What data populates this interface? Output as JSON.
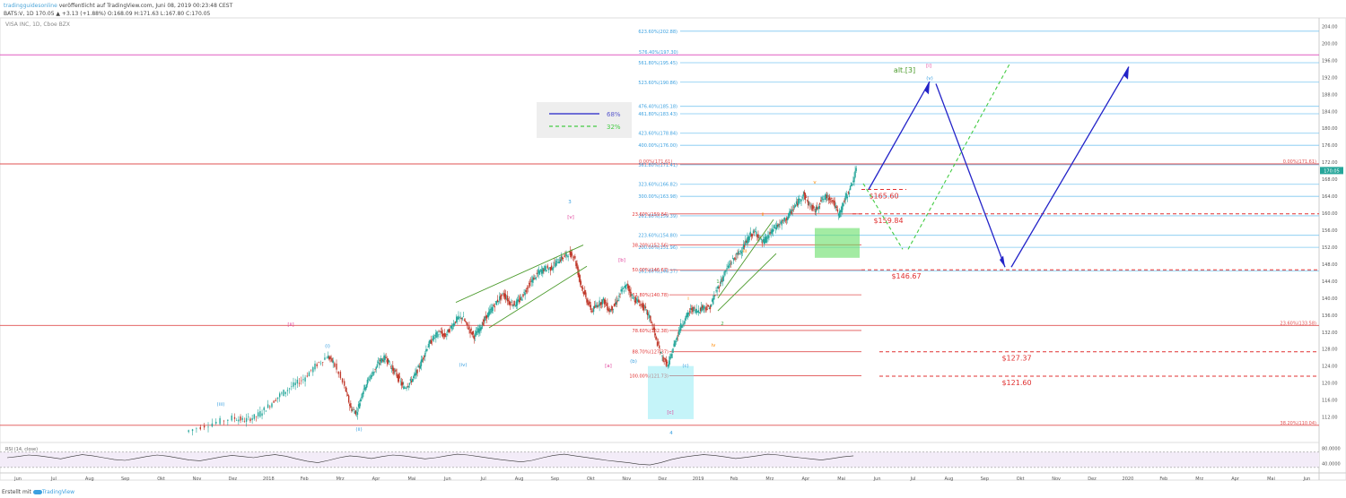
{
  "header": {
    "brand": "tradingguidesonline",
    "published": " veröffentlicht auf TradingView.com, Juni 08, 2019 00:23:48 CEST",
    "quote": "BATS:V, 1D 170.05 ▲ +3.13 (+1.88%) O:168.09 H:171.63 L:167.80 C:170.05"
  },
  "symbol_label": "VISA INC, 1D, Cboe BZX",
  "footer": {
    "prefix": "Erstellt mit",
    "brand": "TradingView"
  },
  "legend": [
    {
      "label": "68%",
      "color": "#2323c8",
      "style": "solid"
    },
    {
      "label": "32%",
      "color": "#44cc44",
      "style": "dashed"
    }
  ],
  "last_price_tag": "170.05",
  "rsi": {
    "label": "RSI (14, close)",
    "ticks": [
      "80.0000",
      "40.0000"
    ]
  },
  "chart_data": {
    "type": "candlestick",
    "symbol": "BATS:V",
    "timeframe": "1D",
    "price_axis": {
      "min": 106,
      "max": 206,
      "ticks": [
        112,
        116,
        120,
        124,
        128,
        132,
        136,
        140,
        144,
        148,
        152,
        156,
        160,
        164,
        168,
        172,
        176,
        180,
        184,
        188,
        192,
        196,
        200,
        204
      ]
    },
    "time_axis": [
      "Jun",
      "Jul",
      "Aug",
      "Sep",
      "Okt",
      "Nov",
      "Dez",
      "2018",
      "Feb",
      "Mrz",
      "Apr",
      "Mai",
      "Jun",
      "Jul",
      "Aug",
      "Sep",
      "Okt",
      "Nov",
      "Dez",
      "2019",
      "Feb",
      "Mrz",
      "Apr",
      "Mai",
      "Jun",
      "Jul",
      "Aug",
      "Sep",
      "Okt",
      "Nov",
      "Dez",
      "2020",
      "Feb",
      "Mrz",
      "Apr",
      "Mai",
      "Jun"
    ],
    "price_path": [
      [
        0,
        108.5
      ],
      [
        4,
        110.3
      ],
      [
        8,
        111.8
      ],
      [
        10,
        111.2
      ],
      [
        12,
        112.2
      ],
      [
        14,
        114.5
      ],
      [
        16,
        117.2
      ],
      [
        18,
        119.2
      ],
      [
        20,
        121.0
      ],
      [
        22,
        124.0
      ],
      [
        24,
        126.3
      ],
      [
        25,
        125.0
      ],
      [
        27,
        119.0
      ],
      [
        28,
        114.0
      ],
      [
        29,
        113.0
      ],
      [
        30,
        118.0
      ],
      [
        31,
        120.8
      ],
      [
        32,
        123.0
      ],
      [
        33,
        125.3
      ],
      [
        34,
        126.0
      ],
      [
        35,
        123.5
      ],
      [
        36,
        121.5
      ],
      [
        37,
        118.8
      ],
      [
        38,
        120.0
      ],
      [
        39,
        122.0
      ],
      [
        40,
        125.0
      ],
      [
        41,
        128.5
      ],
      [
        42,
        130.5
      ],
      [
        43,
        132.0
      ],
      [
        44,
        131.0
      ],
      [
        45,
        133.0
      ],
      [
        46,
        135.0
      ],
      [
        47,
        135.5
      ],
      [
        48,
        133.0
      ],
      [
        49,
        131.0
      ],
      [
        50,
        133.0
      ],
      [
        51,
        135.5
      ],
      [
        52,
        137.5
      ],
      [
        53,
        139.5
      ],
      [
        54,
        141.0
      ],
      [
        55,
        139.0
      ],
      [
        56,
        138.5
      ],
      [
        57,
        140.0
      ],
      [
        58,
        142.5
      ],
      [
        59,
        144.5
      ],
      [
        60,
        146.0
      ],
      [
        61,
        147.0
      ],
      [
        62,
        147.0
      ],
      [
        63,
        148.5
      ],
      [
        64,
        149.5
      ],
      [
        65,
        150.5
      ],
      [
        66,
        150.0
      ],
      [
        67,
        144.0
      ],
      [
        68,
        140.0
      ],
      [
        69,
        137.0
      ],
      [
        70,
        138.5
      ],
      [
        71,
        139.5
      ],
      [
        72,
        137.0
      ],
      [
        73,
        138.5
      ],
      [
        74,
        141.5
      ],
      [
        75,
        143.0
      ],
      [
        76,
        140.0
      ],
      [
        77,
        139.0
      ],
      [
        78,
        137.5
      ],
      [
        79,
        135.0
      ],
      [
        80,
        130.0
      ],
      [
        81,
        126.0
      ],
      [
        82,
        124.0
      ],
      [
        83,
        129.0
      ],
      [
        84,
        133.0
      ],
      [
        85,
        135.5
      ],
      [
        86,
        137.5
      ],
      [
        87,
        137.0
      ],
      [
        88,
        138.0
      ],
      [
        89,
        137.5
      ],
      [
        90,
        141.0
      ],
      [
        91,
        144.0
      ],
      [
        92,
        147.0
      ],
      [
        93,
        149.0
      ],
      [
        94,
        150.5
      ],
      [
        95,
        152.5
      ],
      [
        96,
        155.0
      ],
      [
        97,
        155.5
      ],
      [
        98,
        153.0
      ],
      [
        99,
        154.5
      ],
      [
        100,
        156.5
      ],
      [
        101,
        157.5
      ],
      [
        102,
        158.5
      ],
      [
        103,
        160.5
      ],
      [
        104,
        162.5
      ],
      [
        105,
        164.5
      ],
      [
        106,
        162.0
      ],
      [
        107,
        160.5
      ],
      [
        108,
        163.0
      ],
      [
        109,
        164.0
      ],
      [
        110,
        163.0
      ],
      [
        111,
        159.5
      ],
      [
        112,
        163.0
      ],
      [
        113,
        166.0
      ],
      [
        114,
        170.0
      ]
    ],
    "rsi_path": [
      55,
      58,
      62,
      60,
      56,
      52,
      58,
      63,
      60,
      55,
      50,
      48,
      53,
      58,
      62,
      59,
      54,
      49,
      47,
      52,
      57,
      61,
      58,
      55,
      60,
      63,
      59,
      52,
      46,
      42,
      48,
      55,
      60,
      57,
      53,
      58,
      62,
      60,
      56,
      52,
      55,
      60,
      64,
      62,
      58,
      54,
      50,
      47,
      44,
      48,
      55,
      61,
      64,
      60,
      56,
      52,
      48,
      45,
      42,
      38,
      36,
      42,
      50,
      56,
      60,
      63,
      61,
      57,
      53,
      56,
      60,
      64,
      62,
      58,
      55,
      52,
      49,
      53,
      57,
      60
    ],
    "horizontal_lines": [
      {
        "level": 197.3,
        "color": "#e05cc0",
        "label_left": "576.40%(197.30)",
        "label_right": ""
      },
      {
        "level": 171.61,
        "color": "#e05050",
        "label_left": "0.00%(171.61)",
        "label_right": "0.00%(171.61)"
      },
      {
        "level": 133.58,
        "color": "#e05050",
        "label_left": "",
        "label_right": "23.60%(133.58)"
      },
      {
        "level": 110.04,
        "color": "#e05050",
        "label_left": "",
        "label_right": "38.20%(110.04)"
      }
    ],
    "fib_right": [
      {
        "level": 202.88,
        "label": "623.60%(202.88)"
      },
      {
        "level": 195.45,
        "label": "561.80%(195.45)"
      },
      {
        "level": 190.86,
        "label": "523.60%(190.86)"
      },
      {
        "level": 185.18,
        "label": "476.40%(185.18)"
      },
      {
        "level": 183.43,
        "label": "461.80%(183.43)"
      },
      {
        "level": 178.84,
        "label": "423.60%(178.84)"
      },
      {
        "level": 176.0,
        "label": "400.00%(176.00)"
      },
      {
        "level": 171.41,
        "label": "361.80%(171.41)"
      },
      {
        "level": 166.82,
        "label": "323.60%(166.82)"
      },
      {
        "level": 163.98,
        "label": "300.00%(163.98)"
      },
      {
        "level": 159.39,
        "label": "261.80%(159.39)"
      },
      {
        "level": 154.8,
        "label": "223.60%(154.80)"
      },
      {
        "level": 151.96,
        "label": "200.00%(151.96)"
      },
      {
        "level": 146.37,
        "label": "161.80%(146.37)"
      }
    ],
    "fib_red": [
      {
        "level": 159.84,
        "label": "23.60%(159.84)"
      },
      {
        "level": 152.56,
        "label": "38.20%(152.56)"
      },
      {
        "level": 146.67,
        "label": "50.00%(146.67)"
      },
      {
        "level": 140.78,
        "label": "61.80%(140.78)"
      },
      {
        "level": 132.38,
        "label": "78.60%(132.38)"
      },
      {
        "level": 127.37,
        "label": "88.70%(127.37)"
      },
      {
        "level": 121.73,
        "label": "100.00%(121.73)"
      }
    ],
    "price_targets": [
      {
        "level": 165.6,
        "label": "$165.60"
      },
      {
        "level": 159.84,
        "label": "$159.84"
      },
      {
        "level": 146.67,
        "label": "$146.67"
      },
      {
        "level": 127.37,
        "label": "$127.37"
      },
      {
        "level": 121.6,
        "label": "$121.60"
      }
    ],
    "wave_labels": [
      {
        "text": "alt.[3]",
        "color": "#4a9a2a"
      },
      {
        "text": "[i]",
        "color": "#e0409a"
      },
      {
        "text": "(v)",
        "color": "#3aa0e0"
      },
      {
        "text": "[ii]",
        "color": "#e0409a"
      },
      {
        "text": "[a]",
        "color": "#e0409a"
      },
      {
        "text": "(b)",
        "color": "#3aa0e0"
      },
      {
        "text": "(c)",
        "color": "#3aa0e0"
      },
      {
        "text": "[c]",
        "color": "#e0409a"
      },
      {
        "text": "(iii)",
        "color": "#3aa0e0"
      },
      {
        "text": "(iv)",
        "color": "#3aa0e0"
      },
      {
        "text": "(i)",
        "color": "#3aa0e0"
      },
      {
        "text": "(ii)",
        "color": "#3aa0e0"
      },
      {
        "text": "[b]",
        "color": "#e0409a"
      },
      {
        "text": "[v]",
        "color": "#e0409a"
      },
      {
        "text": "3",
        "color": "#3aa0e0"
      },
      {
        "text": "4",
        "color": "#3aa0e0"
      },
      {
        "text": "1",
        "color": "#44aa44"
      },
      {
        "text": "2",
        "color": "#44aa44"
      },
      {
        "text": "i",
        "color": "#ff8800"
      },
      {
        "text": "ii",
        "color": "#ff8800"
      },
      {
        "text": "iii",
        "color": "#ff8800"
      },
      {
        "text": "iv",
        "color": "#ff8800"
      },
      {
        "text": "v",
        "color": "#ff8800"
      }
    ]
  }
}
